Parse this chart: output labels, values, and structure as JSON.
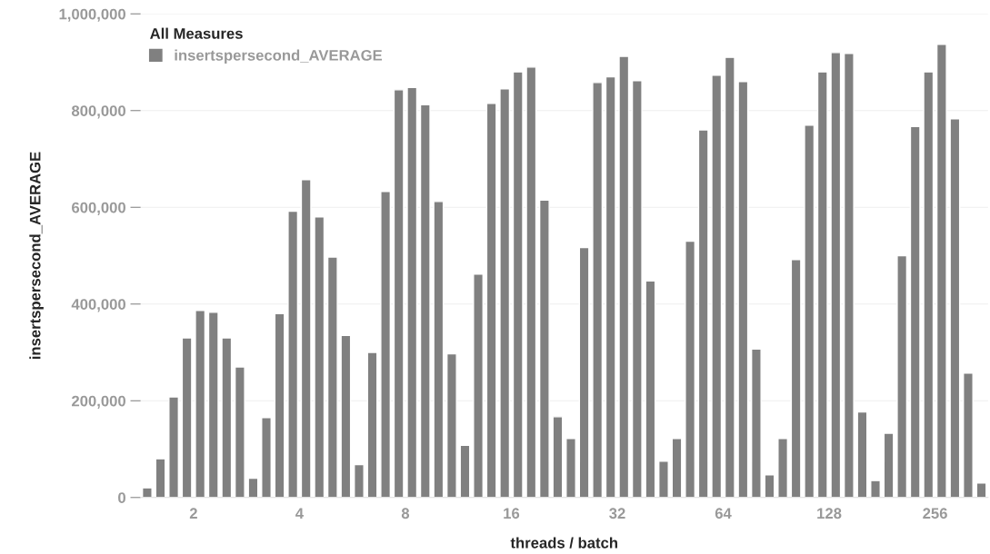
{
  "chart_data": {
    "type": "bar",
    "xlabel": "threads / batch",
    "ylabel": "insertspersecond_AVERAGE",
    "legend_title": "All Measures",
    "categories": [
      "2",
      "4",
      "8",
      "16",
      "32",
      "64",
      "128",
      "256"
    ],
    "series": [
      {
        "name": "insertspersecond_AVERAGE",
        "color": "#808080",
        "values": [
          20000,
          40000,
          68000,
          108000,
          122000,
          122000,
          122000,
          133000
        ]
      },
      {
        "color": "#808080",
        "values": [
          80000,
          165000,
          300000,
          462000,
          517000,
          530000,
          492000,
          500000
        ]
      },
      {
        "color": "#808080",
        "values": [
          208000,
          380000,
          633000,
          815000,
          858000,
          760000,
          770000,
          767000
        ]
      },
      {
        "color": "#808080",
        "values": [
          330000,
          592000,
          843000,
          845000,
          870000,
          873000,
          880000,
          880000
        ]
      },
      {
        "color": "#808080",
        "values": [
          387000,
          657000,
          848000,
          880000,
          912000,
          910000,
          920000,
          937000
        ]
      },
      {
        "color": "#808080",
        "values": [
          383000,
          580000,
          812000,
          890000,
          862000,
          860000,
          918000,
          783000
        ]
      },
      {
        "color": "#808080",
        "values": [
          330000,
          497000,
          612000,
          615000,
          448000,
          307000,
          177000,
          257000
        ]
      },
      {
        "color": "#808080",
        "values": [
          270000,
          335000,
          297000,
          167000,
          75000,
          47000,
          35000,
          30000
        ]
      }
    ],
    "ylim": [
      0,
      1000000
    ],
    "yticks": [
      {
        "value": 0,
        "label": "0"
      },
      {
        "value": 200000,
        "label": "200,000"
      },
      {
        "value": 400000,
        "label": "400,000"
      },
      {
        "value": 600000,
        "label": "600,000"
      },
      {
        "value": 800000,
        "label": "800,000"
      },
      {
        "value": 1000000,
        "label": "1,000,000"
      }
    ],
    "grid": "y",
    "legend": "top left"
  }
}
